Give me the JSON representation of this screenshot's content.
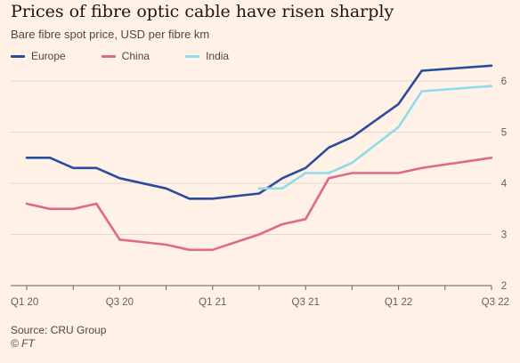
{
  "chart_data": {
    "type": "line",
    "title": "Prices of fibre optic cable have risen sharply",
    "subtitle": "Bare fibre spot price, USD per fibre km",
    "x": [
      "Q1 20",
      "Q2 20",
      "Q3 20",
      "Q4 20",
      "Q1 21",
      "Q2 21",
      "Q3 21",
      "Q4 21",
      "Q1 22",
      "Q2 22",
      "Q3 22"
    ],
    "x_ticks": [
      "Q1 20",
      "Q3 20",
      "Q1 21",
      "Q3 21",
      "Q1 22",
      "Q3 22"
    ],
    "y_ticks": [
      "2",
      "3",
      "4",
      "5",
      "6"
    ],
    "ylim": [
      2,
      6.5
    ],
    "grid": true,
    "legend_position": "top-left",
    "series": [
      {
        "name": "Europe",
        "color": "#2A4C9E",
        "points": [
          {
            "x": "Q1 20",
            "y": 4.5
          },
          {
            "x": "Q1 20+",
            "y": 4.5
          },
          {
            "x": "Q2 20",
            "y": 4.3
          },
          {
            "x": "Q2 20+",
            "y": 4.3
          },
          {
            "x": "Q3 20",
            "y": 4.1
          },
          {
            "x": "Q4 20",
            "y": 3.9
          },
          {
            "x": "Q4 20+",
            "y": 3.7
          },
          {
            "x": "Q1 21",
            "y": 3.7
          },
          {
            "x": "Q2 21",
            "y": 3.8
          },
          {
            "x": "Q2 21+",
            "y": 4.1
          },
          {
            "x": "Q3 21",
            "y": 4.3
          },
          {
            "x": "Q3 21+",
            "y": 4.7
          },
          {
            "x": "Q4 21",
            "y": 4.9
          },
          {
            "x": "Q1 22",
            "y": 5.55
          },
          {
            "x": "Q1 22+",
            "y": 6.2
          },
          {
            "x": "Q3 22",
            "y": 6.3
          }
        ]
      },
      {
        "name": "China",
        "color": "#E0688A",
        "points": [
          {
            "x": "Q1 20",
            "y": 3.6
          },
          {
            "x": "Q1 20+",
            "y": 3.5
          },
          {
            "x": "Q2 20",
            "y": 3.5
          },
          {
            "x": "Q2 20+",
            "y": 3.6
          },
          {
            "x": "Q3 20",
            "y": 2.9
          },
          {
            "x": "Q4 20",
            "y": 2.8
          },
          {
            "x": "Q4 20+",
            "y": 2.7
          },
          {
            "x": "Q1 21",
            "y": 2.7
          },
          {
            "x": "Q2 21",
            "y": 3.0
          },
          {
            "x": "Q2 21+",
            "y": 3.2
          },
          {
            "x": "Q3 21",
            "y": 3.3
          },
          {
            "x": "Q3 21+",
            "y": 4.1
          },
          {
            "x": "Q4 21",
            "y": 4.2
          },
          {
            "x": "Q1 22",
            "y": 4.2
          },
          {
            "x": "Q1 22+",
            "y": 4.3
          },
          {
            "x": "Q3 22",
            "y": 4.5
          }
        ]
      },
      {
        "name": "India",
        "color": "#8DDCEB",
        "points": [
          {
            "x": "Q2 21",
            "y": 3.9
          },
          {
            "x": "Q2 21+",
            "y": 3.9
          },
          {
            "x": "Q3 21",
            "y": 4.2
          },
          {
            "x": "Q3 21+",
            "y": 4.2
          },
          {
            "x": "Q4 21",
            "y": 4.4
          },
          {
            "x": "Q1 22",
            "y": 5.1
          },
          {
            "x": "Q1 22+",
            "y": 5.8
          },
          {
            "x": "Q3 22",
            "y": 5.9
          }
        ]
      }
    ]
  },
  "footer": {
    "source": "Source: CRU Group",
    "credit": "© FT"
  }
}
